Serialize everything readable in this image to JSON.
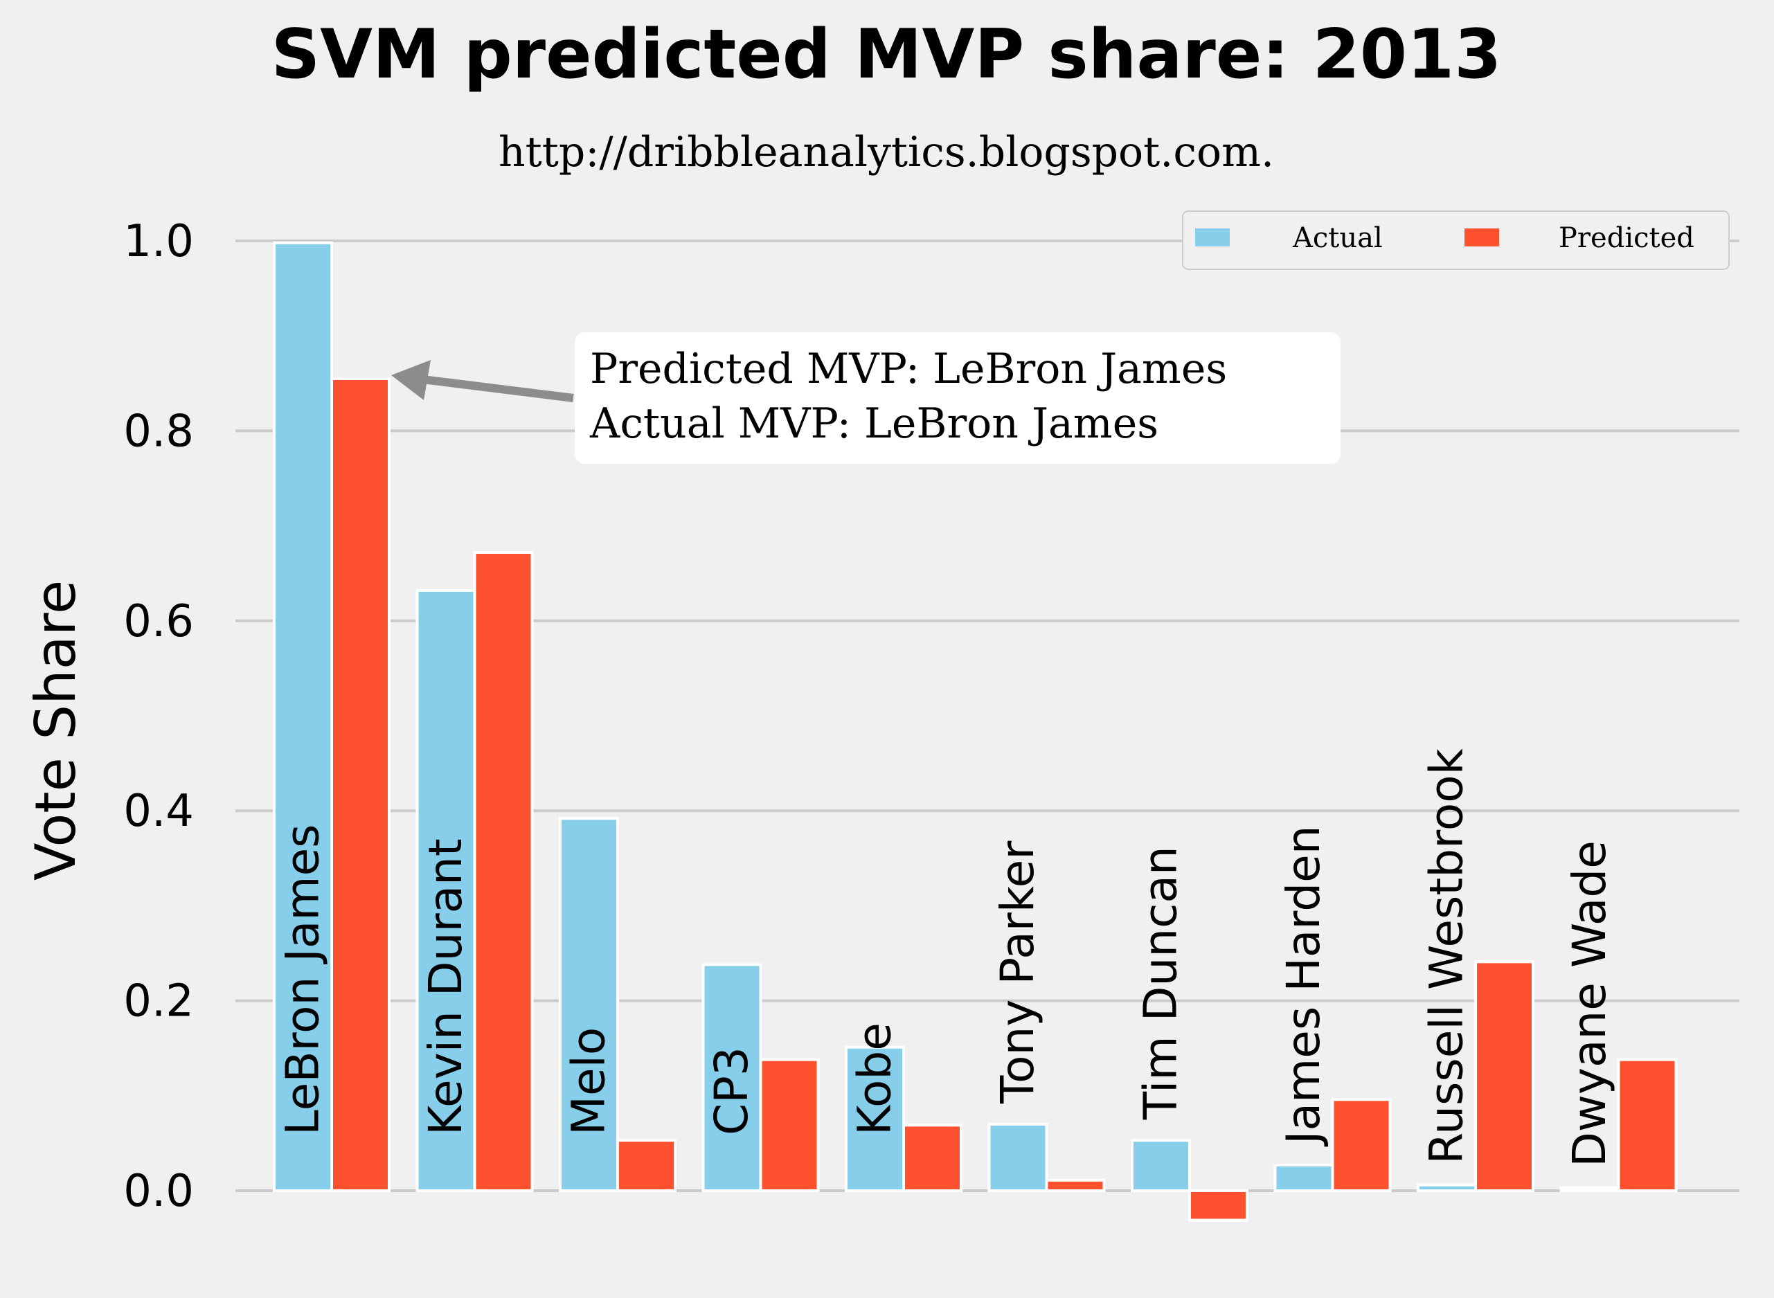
{
  "chart_data": {
    "type": "bar",
    "title": "SVM predicted MVP share: 2013",
    "subtitle": "http://dribbleanalytics.blogspot.com.",
    "ylabel": "Vote Share",
    "xlabel": "",
    "ylim": [
      -0.05,
      1.05
    ],
    "yticks": [
      "1.0",
      "0.8",
      "0.6",
      "0.4",
      "0.2",
      "0.0"
    ],
    "grid": true,
    "legend_position": "top-right",
    "categories": [
      "LeBron James",
      "Kevin Durant",
      "Melo",
      "CP3",
      "Kobe",
      "Tony Parker",
      "Tim Duncan",
      "James Harden",
      "Russell Westbrook",
      "Dwyane Wade"
    ],
    "series": [
      {
        "name": "Actual",
        "color": "#87ceeb",
        "values": [
          0.998,
          0.632,
          0.392,
          0.238,
          0.151,
          0.07,
          0.053,
          0.027,
          0.006,
          0.003
        ]
      },
      {
        "name": "Predicted",
        "color": "#fe5130",
        "values": [
          0.855,
          0.672,
          0.053,
          0.138,
          0.069,
          0.011,
          -0.031,
          0.096,
          0.241,
          0.138
        ]
      }
    ],
    "annotation": {
      "line1": "Predicted MVP: LeBron James",
      "line2": "Actual MVP: LeBron James",
      "points_to": {
        "category": "LeBron James",
        "series": "Predicted"
      }
    }
  }
}
